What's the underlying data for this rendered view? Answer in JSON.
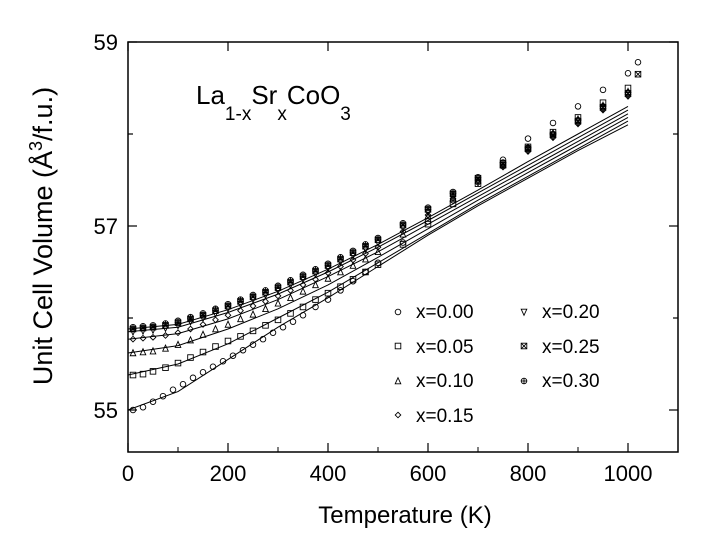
{
  "chart_data": {
    "type": "scatter",
    "title": "",
    "annotation": {
      "base": [
        "La",
        "Sr",
        "CoO"
      ],
      "subscripts": [
        "1-x",
        "x",
        "3"
      ]
    },
    "xlabel": "Temperature (K)",
    "ylabel": "Unit Cell Volume (Å³/f.u.)",
    "ylabel_parts": {
      "pre": "Unit Cell Volume (Å",
      "sup": "3",
      "post": "/f.u.)"
    },
    "xlim": [
      0,
      1100
    ],
    "ylim": [
      54.5,
      59
    ],
    "x_ticks": [
      0,
      200,
      400,
      600,
      800,
      1000
    ],
    "y_ticks": [
      55,
      57,
      59
    ],
    "x_tick_labels": [
      "0",
      "200",
      "400",
      "600",
      "800",
      "1000"
    ],
    "y_tick_labels": [
      "55",
      "57",
      "59"
    ],
    "grid": false,
    "legend_position": "lower-right",
    "series": [
      {
        "name": "x=0.00",
        "label": "x=0.00",
        "marker": "circle",
        "x": [
          10,
          30,
          50,
          70,
          90,
          110,
          130,
          150,
          170,
          190,
          210,
          230,
          250,
          270,
          290,
          310,
          330,
          350,
          375,
          400,
          425,
          450,
          475,
          500,
          550,
          600,
          650,
          700,
          750,
          800,
          850,
          900,
          950,
          1000,
          1020
        ],
        "y": [
          55.0,
          55.03,
          55.09,
          55.15,
          55.22,
          55.28,
          55.35,
          55.41,
          55.47,
          55.53,
          55.59,
          55.65,
          55.71,
          55.77,
          55.84,
          55.9,
          55.96,
          56.03,
          56.12,
          56.2,
          56.3,
          56.4,
          56.5,
          56.6,
          56.82,
          57.05,
          57.28,
          57.5,
          57.72,
          57.95,
          58.12,
          58.3,
          58.48,
          58.66,
          58.78
        ]
      },
      {
        "name": "x=0.05",
        "label": "x=0.05",
        "marker": "square",
        "x": [
          10,
          30,
          50,
          75,
          100,
          125,
          150,
          175,
          200,
          225,
          250,
          275,
          300,
          325,
          350,
          375,
          400,
          425,
          450,
          475,
          500,
          550,
          600,
          650,
          700,
          750,
          800,
          850,
          900,
          950,
          1000
        ],
        "y": [
          55.38,
          55.39,
          55.42,
          55.46,
          55.51,
          55.57,
          55.63,
          55.69,
          55.75,
          55.8,
          55.86,
          55.92,
          55.98,
          56.05,
          56.12,
          56.2,
          56.27,
          56.34,
          56.42,
          56.5,
          56.58,
          56.8,
          57.02,
          57.24,
          57.46,
          57.66,
          57.86,
          58.02,
          58.18,
          58.34,
          58.5
        ]
      },
      {
        "name": "x=0.10",
        "label": "x=0.10",
        "marker": "triangle-up",
        "x": [
          10,
          30,
          50,
          75,
          100,
          125,
          150,
          175,
          200,
          225,
          250,
          275,
          300,
          325,
          350,
          375,
          400,
          425,
          450,
          475,
          500,
          550,
          600,
          650,
          700,
          750,
          800,
          850,
          900,
          950,
          1000
        ],
        "y": [
          55.62,
          55.63,
          55.64,
          55.67,
          55.71,
          55.76,
          55.82,
          55.88,
          55.93,
          55.99,
          56.04,
          56.1,
          56.16,
          56.22,
          56.29,
          56.36,
          56.43,
          56.5,
          56.57,
          56.64,
          56.72,
          56.91,
          57.11,
          57.3,
          57.49,
          57.67,
          57.85,
          58.01,
          58.16,
          58.31,
          58.46
        ]
      },
      {
        "name": "x=0.15",
        "label": "x=0.15",
        "marker": "diamond",
        "x": [
          10,
          30,
          50,
          75,
          100,
          125,
          150,
          175,
          200,
          225,
          250,
          275,
          300,
          325,
          350,
          375,
          400,
          425,
          450,
          475,
          500,
          550,
          600,
          650,
          700,
          750,
          800,
          850,
          900,
          950,
          1000
        ],
        "y": [
          55.77,
          55.78,
          55.79,
          55.81,
          55.84,
          55.88,
          55.93,
          55.98,
          56.03,
          56.08,
          56.13,
          56.18,
          56.24,
          56.3,
          56.36,
          56.42,
          56.49,
          56.56,
          56.63,
          56.7,
          56.77,
          56.94,
          57.12,
          57.3,
          57.47,
          57.64,
          57.81,
          57.96,
          58.11,
          58.26,
          58.41
        ]
      },
      {
        "name": "x=0.20",
        "label": "x=0.20",
        "marker": "triangle-down",
        "x": [
          10,
          30,
          50,
          75,
          100,
          125,
          150,
          175,
          200,
          225,
          250,
          275,
          300,
          325,
          350,
          375,
          400,
          425,
          450,
          475,
          500,
          550,
          600,
          650,
          700,
          750,
          800,
          850,
          900,
          950,
          1000
        ],
        "y": [
          55.85,
          55.86,
          55.87,
          55.89,
          55.92,
          55.96,
          56.0,
          56.05,
          56.1,
          56.15,
          56.2,
          56.25,
          56.3,
          56.36,
          56.42,
          56.48,
          56.54,
          56.61,
          56.68,
          56.75,
          56.82,
          56.98,
          57.15,
          57.32,
          57.49,
          57.66,
          57.82,
          57.97,
          58.12,
          58.27,
          58.42
        ]
      },
      {
        "name": "x=0.25",
        "label": "x=0.25",
        "marker": "square-x",
        "x": [
          10,
          30,
          50,
          75,
          100,
          125,
          150,
          175,
          200,
          225,
          250,
          275,
          300,
          325,
          350,
          375,
          400,
          425,
          450,
          475,
          500,
          550,
          600,
          650,
          700,
          750,
          800,
          850,
          900,
          950,
          1000,
          1020
        ],
        "y": [
          55.88,
          55.89,
          55.9,
          55.92,
          55.95,
          55.99,
          56.03,
          56.08,
          56.13,
          56.18,
          56.23,
          56.28,
          56.33,
          56.39,
          56.45,
          56.51,
          56.57,
          56.64,
          56.71,
          56.78,
          56.85,
          57.01,
          57.18,
          57.35,
          57.52,
          57.68,
          57.84,
          57.99,
          58.14,
          58.29,
          58.44,
          58.65
        ]
      },
      {
        "name": "x=0.30",
        "label": "x=0.30",
        "marker": "circle-plus",
        "x": [
          10,
          30,
          50,
          75,
          100,
          125,
          150,
          175,
          200,
          225,
          250,
          275,
          300,
          325,
          350,
          375,
          400,
          425,
          450,
          475,
          500,
          550,
          600,
          650,
          700,
          750,
          800,
          850,
          900,
          950,
          1000
        ],
        "y": [
          55.9,
          55.91,
          55.92,
          55.94,
          55.97,
          56.01,
          56.05,
          56.1,
          56.15,
          56.2,
          56.25,
          56.3,
          56.35,
          56.41,
          56.47,
          56.53,
          56.59,
          56.66,
          56.73,
          56.8,
          56.87,
          57.03,
          57.2,
          57.37,
          57.53,
          57.69,
          57.85,
          58.0,
          58.15,
          58.3,
          58.45
        ]
      }
    ],
    "fit_lines": [
      {
        "x": [
          0,
          100,
          200,
          300,
          400,
          500,
          600,
          700,
          800,
          900,
          1000
        ],
        "y": [
          55.0,
          55.2,
          55.55,
          55.9,
          56.22,
          56.56,
          56.9,
          57.22,
          57.52,
          57.82,
          58.1
        ]
      },
      {
        "x": [
          0,
          100,
          200,
          300,
          400,
          500,
          600,
          700,
          800,
          900,
          1000
        ],
        "y": [
          55.38,
          55.5,
          55.72,
          56.0,
          56.28,
          56.6,
          56.92,
          57.24,
          57.54,
          57.84,
          58.14
        ]
      },
      {
        "x": [
          0,
          100,
          200,
          300,
          400,
          500,
          600,
          700,
          800,
          900,
          1000
        ],
        "y": [
          55.62,
          55.7,
          55.88,
          56.1,
          56.36,
          56.66,
          56.97,
          57.28,
          57.58,
          57.88,
          58.18
        ]
      },
      {
        "x": [
          0,
          100,
          200,
          300,
          400,
          500,
          600,
          700,
          800,
          900,
          1000
        ],
        "y": [
          55.77,
          55.83,
          55.99,
          56.2,
          56.45,
          56.72,
          57.02,
          57.32,
          57.62,
          57.92,
          58.22
        ]
      },
      {
        "x": [
          0,
          100,
          200,
          300,
          400,
          500,
          600,
          700,
          800,
          900,
          1000
        ],
        "y": [
          55.85,
          55.9,
          56.06,
          56.26,
          56.5,
          56.77,
          57.06,
          57.36,
          57.66,
          57.96,
          58.26
        ]
      },
      {
        "x": [
          0,
          100,
          200,
          300,
          400,
          500,
          600,
          700,
          800,
          900,
          1000
        ],
        "y": [
          55.88,
          55.93,
          56.09,
          56.29,
          56.53,
          56.8,
          57.09,
          57.39,
          57.7,
          58.0,
          58.3
        ]
      }
    ]
  }
}
